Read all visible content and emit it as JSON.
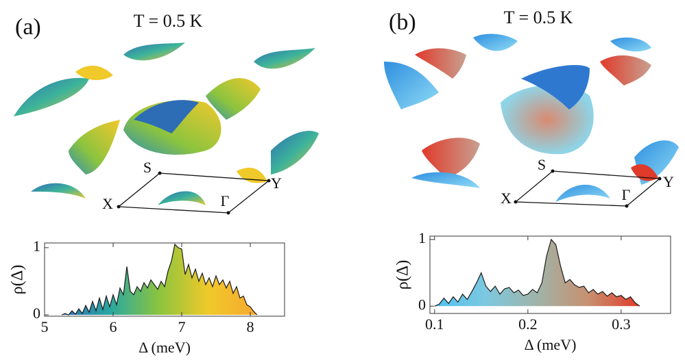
{
  "chart_data": [
    {
      "type": "area",
      "panel_label": "(a)",
      "title": "T = 0.5 K",
      "annotations": [
        "S",
        "Y",
        "X",
        "Γ"
      ],
      "x_label": "Δ (meV)",
      "y_label": "ρ(Δ)",
      "colormap": [
        "#2d6db5",
        "#2aa8a0",
        "#8cc43e",
        "#f0c92a",
        "#f7a830"
      ],
      "x": [
        5.25,
        5.3,
        5.35,
        5.4,
        5.45,
        5.5,
        5.55,
        5.6,
        5.65,
        5.7,
        5.75,
        5.8,
        5.85,
        5.9,
        5.95,
        6.0,
        6.05,
        6.1,
        6.15,
        6.2,
        6.25,
        6.3,
        6.35,
        6.4,
        6.45,
        6.5,
        6.55,
        6.6,
        6.65,
        6.7,
        6.75,
        6.8,
        6.85,
        6.9,
        6.95,
        7.0,
        7.05,
        7.1,
        7.15,
        7.2,
        7.25,
        7.3,
        7.35,
        7.4,
        7.45,
        7.5,
        7.55,
        7.6,
        7.65,
        7.7,
        7.75,
        7.8,
        7.85,
        7.9,
        7.95,
        8.0,
        8.05,
        8.1
      ],
      "values": [
        0.0,
        0.02,
        0.0,
        0.06,
        0.01,
        0.09,
        0.02,
        0.14,
        0.04,
        0.2,
        0.06,
        0.25,
        0.08,
        0.28,
        0.12,
        0.3,
        0.15,
        0.4,
        0.3,
        0.72,
        0.35,
        0.3,
        0.42,
        0.35,
        0.48,
        0.4,
        0.52,
        0.45,
        0.38,
        0.5,
        0.42,
        0.65,
        0.8,
        1.05,
        1.0,
        0.98,
        0.6,
        0.75,
        0.55,
        0.68,
        0.5,
        0.62,
        0.45,
        0.55,
        0.42,
        0.58,
        0.45,
        0.52,
        0.4,
        0.5,
        0.32,
        0.42,
        0.25,
        0.28,
        0.15,
        0.12,
        0.05,
        0.0
      ],
      "xlim": [
        5,
        8.5
      ],
      "xticks": [
        5,
        6,
        7,
        8
      ],
      "ylim": [
        -0.02,
        1.07
      ],
      "yticks": [
        0,
        1
      ]
    },
    {
      "type": "area",
      "panel_label": "(b)",
      "title": "T = 0.5 K",
      "annotations": [
        "S",
        "Y",
        "X",
        "Γ"
      ],
      "x_label": "Δ (meV)",
      "y_label": "ρ(Δ)",
      "colormap": [
        "#4fc0f0",
        "#7cc8e0",
        "#9fb4a8",
        "#c89070",
        "#e03a2a"
      ],
      "x": [
        0.1,
        0.105,
        0.11,
        0.115,
        0.12,
        0.125,
        0.13,
        0.135,
        0.14,
        0.145,
        0.15,
        0.155,
        0.16,
        0.165,
        0.17,
        0.175,
        0.18,
        0.185,
        0.19,
        0.195,
        0.2,
        0.205,
        0.21,
        0.215,
        0.22,
        0.225,
        0.23,
        0.235,
        0.24,
        0.245,
        0.25,
        0.255,
        0.26,
        0.265,
        0.27,
        0.275,
        0.28,
        0.285,
        0.29,
        0.295,
        0.3,
        0.305,
        0.31,
        0.315,
        0.32
      ],
      "values": [
        0.0,
        0.03,
        0.12,
        0.04,
        0.14,
        0.06,
        0.18,
        0.1,
        0.22,
        0.35,
        0.5,
        0.3,
        0.22,
        0.3,
        0.18,
        0.26,
        0.28,
        0.2,
        0.24,
        0.16,
        0.18,
        0.25,
        0.2,
        0.35,
        0.75,
        1.0,
        0.92,
        0.6,
        0.35,
        0.4,
        0.32,
        0.28,
        0.3,
        0.2,
        0.25,
        0.18,
        0.22,
        0.15,
        0.2,
        0.14,
        0.16,
        0.1,
        0.14,
        0.05,
        0.0
      ],
      "xlim": [
        0.095,
        0.353
      ],
      "xticks": [
        0.1,
        0.2,
        0.3
      ],
      "ylim": [
        -0.11,
        1.05
      ],
      "yticks": [
        0,
        1
      ]
    }
  ]
}
